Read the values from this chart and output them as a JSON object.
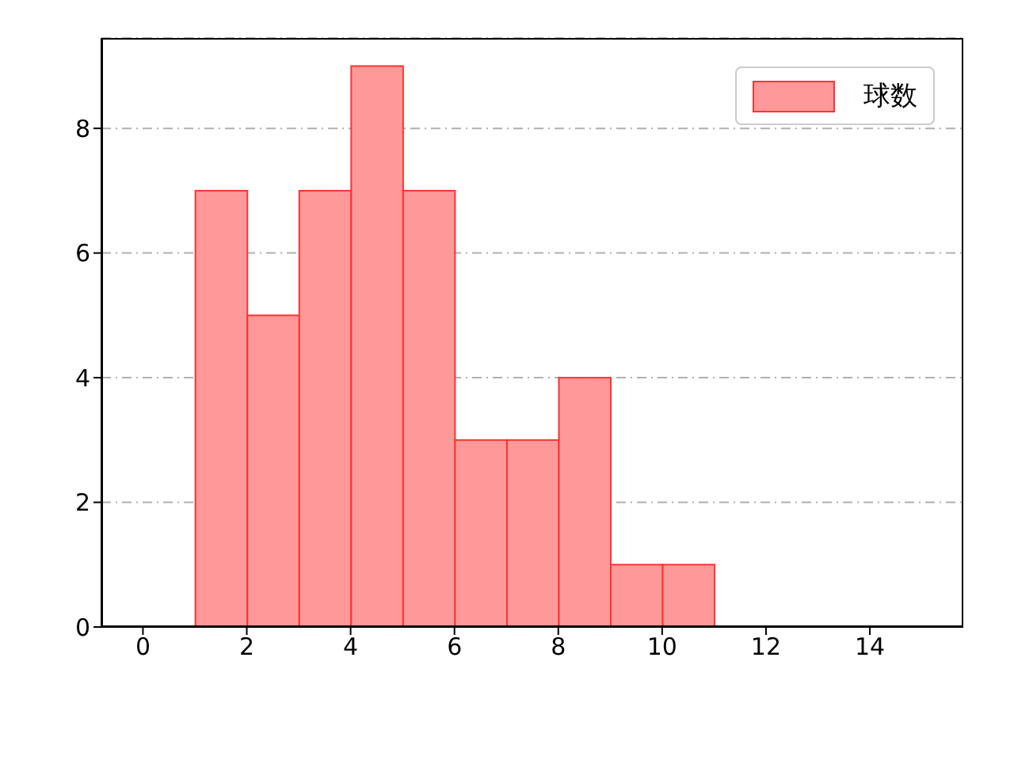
{
  "chart_data": {
    "type": "histogram",
    "bins": [
      1,
      2,
      3,
      4,
      5,
      6,
      7,
      8,
      9,
      10,
      11
    ],
    "series": [
      {
        "name": "球数",
        "color": "#ff9999",
        "values": [
          7,
          5,
          7,
          9,
          7,
          3,
          3,
          4,
          1,
          1
        ]
      }
    ],
    "xlim": [
      -0.8,
      15.8
    ],
    "xticks": [
      0,
      2,
      4,
      6,
      8,
      10,
      12,
      14
    ],
    "ylim": [
      0,
      9.45
    ],
    "yticks": [
      0,
      2,
      4,
      6,
      8
    ],
    "grid": "y",
    "legend": "top right"
  }
}
